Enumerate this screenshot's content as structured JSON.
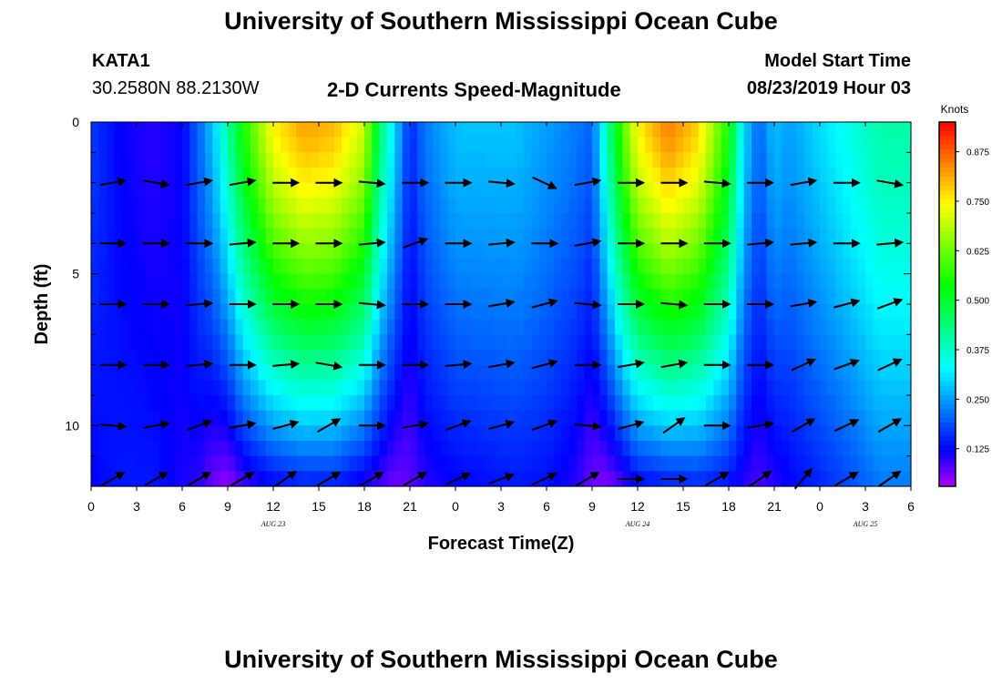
{
  "header": {
    "title": "University of Southern Mississippi Ocean Cube",
    "station_id": "KATA1",
    "station_coords": "30.2580N 88.2130W",
    "chart_title": "2-D Currents Speed-Magnitude",
    "model_start_label": "Model Start Time",
    "model_start_value": "08/23/2019 Hour 03"
  },
  "footer": {
    "title": "University of Southern Mississippi Ocean Cube"
  },
  "chart_data": {
    "type": "heatmap",
    "title": "2-D Currents Speed-Magnitude",
    "xlabel": "Forecast Time(Z)",
    "ylabel": "Depth (ft)",
    "colorbar_label": "Knots",
    "colorbar_ticks": [
      "0.875",
      "0.750",
      "0.625",
      "0.500",
      "0.375",
      "0.250",
      "0.125"
    ],
    "colorbar_tick_values": [
      0.875,
      0.75,
      0.625,
      0.5,
      0.375,
      0.25,
      0.125
    ],
    "color_range": [
      0.03,
      0.95
    ],
    "x_range": [
      0,
      54
    ],
    "x_ticks": [
      0,
      3,
      6,
      9,
      12,
      15,
      18,
      21,
      24,
      27,
      30,
      33,
      36,
      39,
      42,
      45,
      48,
      51,
      54
    ],
    "x_tick_labels": [
      "0",
      "3",
      "6",
      "9",
      "12",
      "15",
      "18",
      "21",
      "0",
      "3",
      "6",
      "9",
      "12",
      "15",
      "18",
      "21",
      "0",
      "3",
      "6"
    ],
    "date_labels": [
      {
        "x": 12,
        "label": "AUG 23"
      },
      {
        "x": 36,
        "label": "AUG 24"
      },
      {
        "x": 51,
        "label": "AUG 25"
      }
    ],
    "y_range": [
      0,
      12
    ],
    "y_ticks": [
      0,
      5,
      10
    ],
    "y_tick_labels": [
      "0",
      "5",
      "10"
    ],
    "depths": [
      0,
      1,
      2,
      3,
      4,
      5,
      6,
      7,
      8,
      9,
      10,
      11,
      12
    ],
    "speed_profile": {
      "x": [
        0,
        2,
        4,
        6,
        7,
        8,
        9,
        10,
        12,
        14,
        16,
        18,
        19,
        20,
        21,
        22,
        24,
        26,
        28,
        30,
        32,
        33,
        34,
        35,
        36,
        38,
        40,
        42,
        43,
        44,
        45,
        46,
        48,
        50,
        52,
        54
      ],
      "surface": [
        0.17,
        0.12,
        0.1,
        0.12,
        0.2,
        0.28,
        0.4,
        0.55,
        0.75,
        0.82,
        0.8,
        0.7,
        0.45,
        0.3,
        0.15,
        0.22,
        0.28,
        0.28,
        0.28,
        0.25,
        0.22,
        0.2,
        0.4,
        0.6,
        0.75,
        0.85,
        0.78,
        0.55,
        0.3,
        0.2,
        0.28,
        0.25,
        0.3,
        0.35,
        0.4,
        0.4
      ],
      "bottom": [
        0.12,
        0.14,
        0.14,
        0.11,
        0.1,
        0.06,
        0.04,
        0.08,
        0.12,
        0.14,
        0.14,
        0.1,
        0.08,
        0.06,
        0.07,
        0.1,
        0.12,
        0.13,
        0.14,
        0.13,
        0.1,
        0.06,
        0.05,
        0.08,
        0.12,
        0.14,
        0.15,
        0.13,
        0.1,
        0.08,
        0.1,
        0.12,
        0.15,
        0.18,
        0.22,
        0.22
      ]
    },
    "vectors_rows": [
      {
        "depth": 2,
        "angles_deg": [
          10,
          -10,
          10,
          10,
          0,
          0,
          -5,
          0,
          0,
          -5,
          -25,
          10,
          0,
          0,
          -5,
          0,
          10,
          0,
          -10
        ]
      },
      {
        "depth": 4,
        "angles_deg": [
          0,
          0,
          0,
          5,
          0,
          0,
          5,
          20,
          0,
          5,
          0,
          10,
          0,
          0,
          0,
          5,
          5,
          0,
          5
        ]
      },
      {
        "depth": 6,
        "angles_deg": [
          0,
          0,
          5,
          0,
          0,
          0,
          -5,
          0,
          0,
          10,
          15,
          -5,
          0,
          -5,
          0,
          0,
          10,
          15,
          20
        ]
      },
      {
        "depth": 8,
        "angles_deg": [
          0,
          0,
          5,
          0,
          5,
          -10,
          0,
          0,
          5,
          10,
          15,
          0,
          10,
          10,
          0,
          0,
          25,
          20,
          25
        ]
      },
      {
        "depth": 10,
        "angles_deg": [
          -5,
          10,
          20,
          10,
          15,
          30,
          0,
          10,
          20,
          15,
          20,
          -5,
          15,
          35,
          0,
          10,
          30,
          25,
          30
        ]
      },
      {
        "depth": 12,
        "angles_deg": [
          30,
          30,
          30,
          30,
          35,
          30,
          30,
          30,
          25,
          20,
          25,
          30,
          0,
          0,
          30,
          35,
          50,
          30,
          35
        ]
      }
    ]
  }
}
